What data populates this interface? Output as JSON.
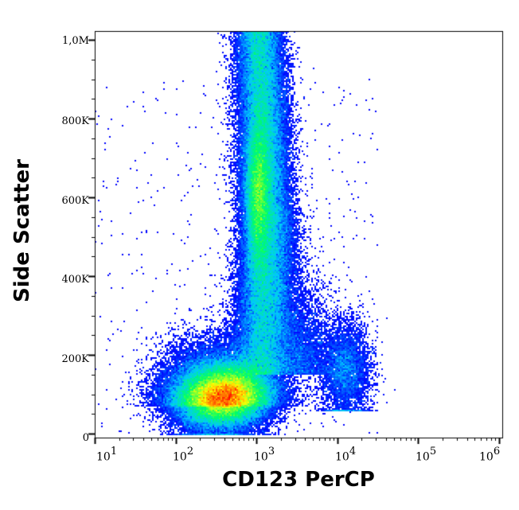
{
  "chart_data": {
    "type": "heatmap",
    "subtype": "flow-cytometry density dot plot (pseudocolor)",
    "title": "",
    "xlabel": "CD123 PerCP",
    "ylabel": "Side Scatter",
    "x_scale": "log",
    "x_ticks": [
      {
        "base": "10",
        "exp": "1"
      },
      {
        "base": "10",
        "exp": "2"
      },
      {
        "base": "10",
        "exp": "3"
      },
      {
        "base": "10",
        "exp": "4"
      },
      {
        "base": "10",
        "exp": "5"
      },
      {
        "base": "10",
        "exp": "6"
      }
    ],
    "x_range": [
      10,
      1000000
    ],
    "y_scale": "linear",
    "y_ticks": [
      "0",
      "200K",
      "400K",
      "600K",
      "800K",
      "1,0M"
    ],
    "y_tick_values": [
      0,
      200000,
      400000,
      600000,
      800000,
      1000000
    ],
    "y_range": [
      0,
      1000000
    ],
    "colormap": [
      "#0000ff",
      "#00c8ff",
      "#00ff64",
      "#ffff00",
      "#ff0000"
    ],
    "populations": [
      {
        "name": "low SSC / dim CD123 cluster",
        "x_center": 400,
        "y_center": 90000,
        "peak_color": "#ff0000",
        "density": "highest"
      },
      {
        "name": "high SSC granulocyte stream",
        "x_center": 1100,
        "y_range": [
          150000,
          1000000
        ],
        "peak_y": 700000,
        "peak_color": "#00ff64"
      },
      {
        "name": "CD123 bright population",
        "x_range": [
          8000,
          30000
        ],
        "y_range": [
          80000,
          300000
        ],
        "peak_color": "#0000ff",
        "density": "low"
      }
    ],
    "grid": false,
    "legend": null
  }
}
